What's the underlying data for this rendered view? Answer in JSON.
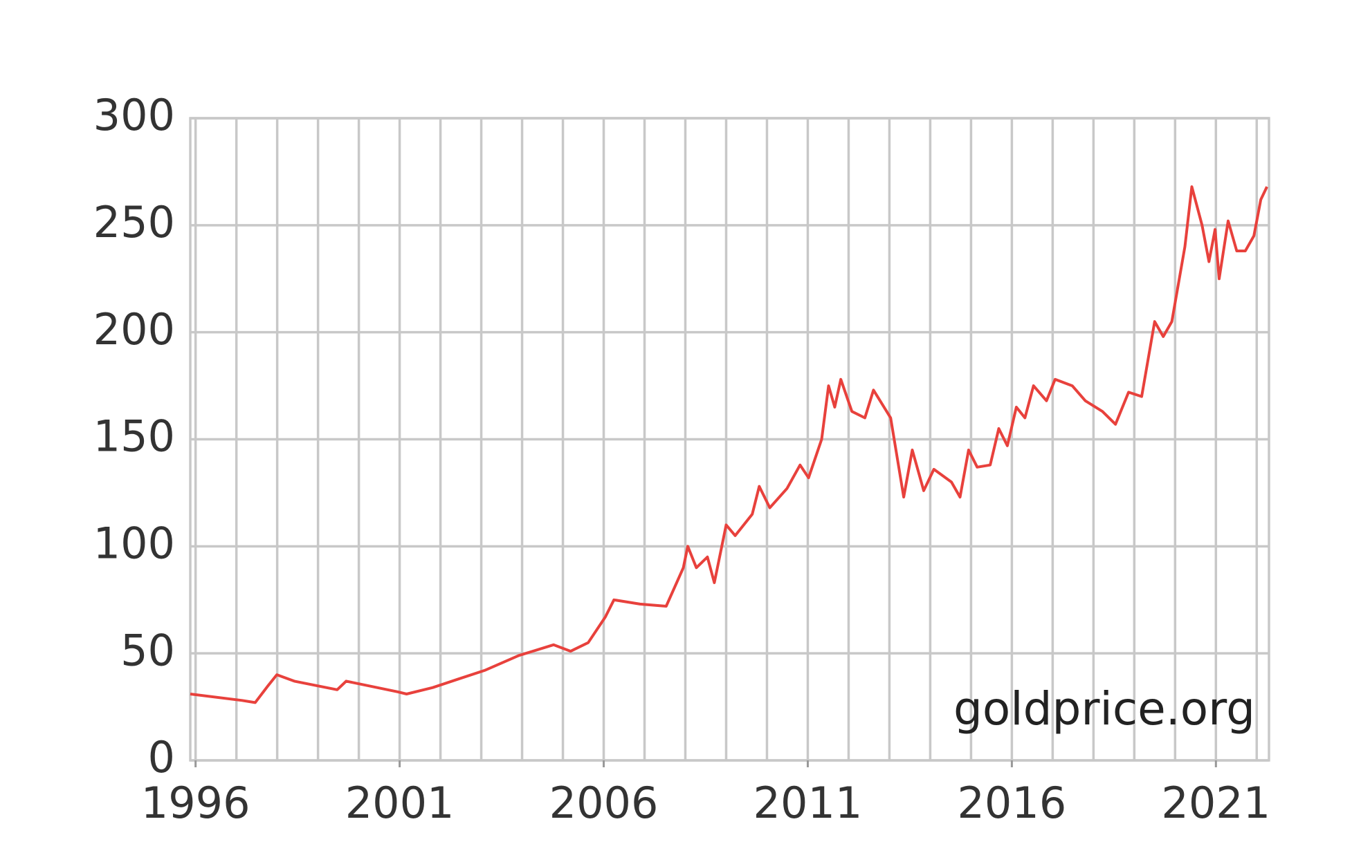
{
  "chart_data": {
    "type": "line",
    "watermark": "goldprice.org",
    "x": [
      1995.87,
      1997.14,
      1997.46,
      1997.78,
      1997.99,
      1998.42,
      1999.47,
      1999.69,
      2000.96,
      2001.17,
      2001.81,
      2002.44,
      2003.08,
      2003.92,
      2004.77,
      2005.19,
      2005.62,
      2006.04,
      2006.25,
      2006.89,
      2007.53,
      2007.95,
      2008.06,
      2008.27,
      2008.54,
      2008.71,
      2009.0,
      2009.22,
      2009.64,
      2009.81,
      2010.07,
      2010.49,
      2010.81,
      2011.02,
      2011.34,
      2011.51,
      2011.66,
      2011.81,
      2012.08,
      2012.4,
      2012.61,
      2013.03,
      2013.35,
      2013.56,
      2013.84,
      2014.09,
      2014.52,
      2014.73,
      2014.94,
      2015.15,
      2015.47,
      2015.68,
      2015.89,
      2016.11,
      2016.32,
      2016.53,
      2016.85,
      2017.06,
      2017.48,
      2017.8,
      2018.22,
      2018.54,
      2018.86,
      2019.18,
      2019.5,
      2019.71,
      2019.92,
      2020.24,
      2020.41,
      2020.66,
      2020.83,
      2020.98,
      2021.08,
      2021.3,
      2021.51,
      2021.72,
      2021.93,
      2022.1,
      2022.25
    ],
    "series": [
      {
        "color": "#e8413c",
        "values": [
          31,
          28,
          27,
          35,
          40,
          37,
          33,
          37,
          32,
          31,
          34,
          38,
          42,
          49,
          54,
          51,
          55,
          67,
          75,
          73,
          72,
          90,
          100,
          90,
          95,
          83,
          110,
          105,
          115,
          128,
          118,
          127,
          138,
          132,
          150,
          175,
          165,
          178,
          163,
          160,
          173,
          160,
          123,
          145,
          126,
          136,
          130,
          123,
          145,
          137,
          138,
          155,
          147,
          165,
          160,
          175,
          168,
          178,
          175,
          168,
          163,
          157,
          172,
          170,
          205,
          198,
          205,
          240,
          268,
          250,
          233,
          248,
          225,
          252,
          238,
          238,
          245,
          262,
          268
        ]
      }
    ],
    "xlim": [
      1995.87,
      2022.3
    ],
    "ylim": [
      0,
      300
    ],
    "xticks": [
      1996,
      2001,
      2006,
      2011,
      2016,
      2021
    ],
    "xminorticks": [
      1996,
      1997,
      1998,
      1999,
      2000,
      2001,
      2002,
      2003,
      2004,
      2005,
      2006,
      2007,
      2008,
      2009,
      2010,
      2011,
      2012,
      2013,
      2014,
      2015,
      2016,
      2017,
      2018,
      2019,
      2020,
      2021,
      2022
    ],
    "yticks": [
      0,
      50,
      100,
      150,
      200,
      250,
      300
    ],
    "grid": true
  }
}
